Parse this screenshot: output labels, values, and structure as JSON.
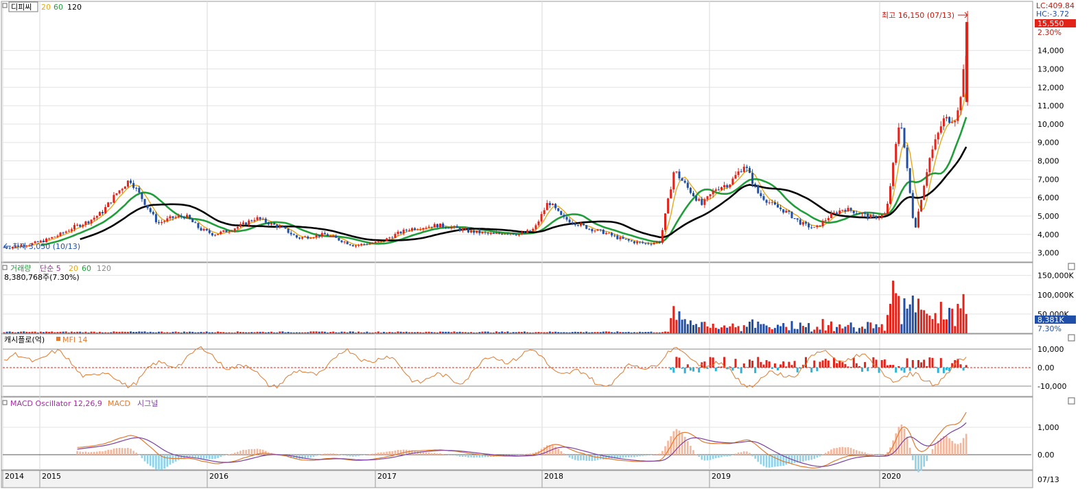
{
  "header": {
    "ticker": "디피씨",
    "ma_labels": [
      {
        "label": "20",
        "color": "#e6a817"
      },
      {
        "label": "60",
        "color": "#1f9e3a"
      },
      {
        "label": "120",
        "color": "#000000"
      }
    ]
  },
  "price_panel": {
    "lc_label": "LC:409.84",
    "hc_label": "HC:-3.72",
    "current_price": "15,550",
    "current_change": "2.30%",
    "high_annotation": "최고 16,150 (07/13)",
    "low_annotation": "최저 3,050 (10/13)",
    "y_ticks": [
      "3,000",
      "4,000",
      "5,000",
      "6,000",
      "7,000",
      "8,000",
      "9,000",
      "10,000",
      "11,000",
      "12,000",
      "13,000",
      "14,000"
    ]
  },
  "volume_panel": {
    "title": "거래량",
    "ma_title": "단순 5",
    "ma_labels": [
      {
        "label": "20",
        "color": "#e6a817"
      },
      {
        "label": "60",
        "color": "#1f9e3a"
      },
      {
        "label": "120",
        "color": "#888888"
      }
    ],
    "value_text": "8,380,768주(7.30%)",
    "y_ticks": [
      "50,000K",
      "100,000K",
      "150,000K"
    ],
    "current_value": "8,381K",
    "current_change": "7.30%"
  },
  "mfi_panel": {
    "title": "캐시플로(억)",
    "indicator": "MFI 14",
    "y_ticks": [
      "10,000",
      "0.00",
      "-10,000"
    ]
  },
  "macd_panel": {
    "title": "MACD Oscillator 12,26,9",
    "macd_label": "MACD",
    "signal_label": "시그널",
    "y_ticks": [
      "1,000",
      "0.00"
    ]
  },
  "x_axis": {
    "labels": [
      "2014",
      "2015",
      "2016",
      "2017",
      "2018",
      "2019",
      "2020"
    ],
    "end_label": "07/13"
  },
  "colors": {
    "up": "#e2231a",
    "down": "#1f4fa8",
    "ma20": "#e6a817",
    "ma60": "#1f9e3a",
    "ma120": "#000000",
    "mfi": "#e07a2e",
    "macd": "#e07a2e",
    "signal": "#7b3fa0"
  },
  "chart_data": {
    "type": "candlestick",
    "x_range": [
      "2014-09",
      "2020-07-13"
    ],
    "price_ylim": [
      2500,
      16300
    ],
    "price_monthly_close": [
      [
        "2014-10",
        3300
      ],
      [
        "2014-11",
        3400
      ],
      [
        "2014-12",
        3500
      ],
      [
        "2015-01",
        3700
      ],
      [
        "2015-02",
        4000
      ],
      [
        "2015-03",
        4400
      ],
      [
        "2015-04",
        4700
      ],
      [
        "2015-05",
        5200
      ],
      [
        "2015-06",
        6200
      ],
      [
        "2015-07",
        7000
      ],
      [
        "2015-08",
        5800
      ],
      [
        "2015-09",
        4600
      ],
      [
        "2015-10",
        4900
      ],
      [
        "2015-11",
        5000
      ],
      [
        "2015-12",
        4300
      ],
      [
        "2016-01",
        4000
      ],
      [
        "2016-02",
        4200
      ],
      [
        "2016-03",
        4500
      ],
      [
        "2016-04",
        4900
      ],
      [
        "2016-05",
        4600
      ],
      [
        "2016-06",
        4300
      ],
      [
        "2016-07",
        3800
      ],
      [
        "2016-08",
        3900
      ],
      [
        "2016-09",
        4000
      ],
      [
        "2016-10",
        3700
      ],
      [
        "2016-11",
        3400
      ],
      [
        "2016-12",
        3500
      ],
      [
        "2017-01",
        3600
      ],
      [
        "2017-02",
        4000
      ],
      [
        "2017-03",
        4300
      ],
      [
        "2017-04",
        4400
      ],
      [
        "2017-05",
        4500
      ],
      [
        "2017-06",
        4400
      ],
      [
        "2017-07",
        4200
      ],
      [
        "2017-08",
        4100
      ],
      [
        "2017-09",
        4000
      ],
      [
        "2017-10",
        4100
      ],
      [
        "2017-11",
        4000
      ],
      [
        "2017-12",
        4300
      ],
      [
        "2018-01",
        5800
      ],
      [
        "2018-02",
        4900
      ],
      [
        "2018-03",
        4600
      ],
      [
        "2018-04",
        4300
      ],
      [
        "2018-05",
        4100
      ],
      [
        "2018-06",
        3800
      ],
      [
        "2018-07",
        3600
      ],
      [
        "2018-08",
        3500
      ],
      [
        "2018-09",
        3600
      ],
      [
        "2018-10",
        7500
      ],
      [
        "2018-11",
        6500
      ],
      [
        "2018-12",
        5600
      ],
      [
        "2019-01",
        6500
      ],
      [
        "2019-02",
        6800
      ],
      [
        "2019-03",
        7800
      ],
      [
        "2019-04",
        6200
      ],
      [
        "2019-05",
        5600
      ],
      [
        "2019-06",
        5200
      ],
      [
        "2019-07",
        4600
      ],
      [
        "2019-08",
        4300
      ],
      [
        "2019-09",
        5000
      ],
      [
        "2019-10",
        5400
      ],
      [
        "2019-11",
        5200
      ],
      [
        "2019-12",
        4900
      ],
      [
        "2020-01",
        5100
      ],
      [
        "2020-02",
        10500
      ],
      [
        "2020-03",
        4200
      ],
      [
        "2020-04",
        8000
      ],
      [
        "2020-05",
        10200
      ],
      [
        "2020-06",
        10400
      ],
      [
        "2020-07",
        15550
      ]
    ]
  }
}
